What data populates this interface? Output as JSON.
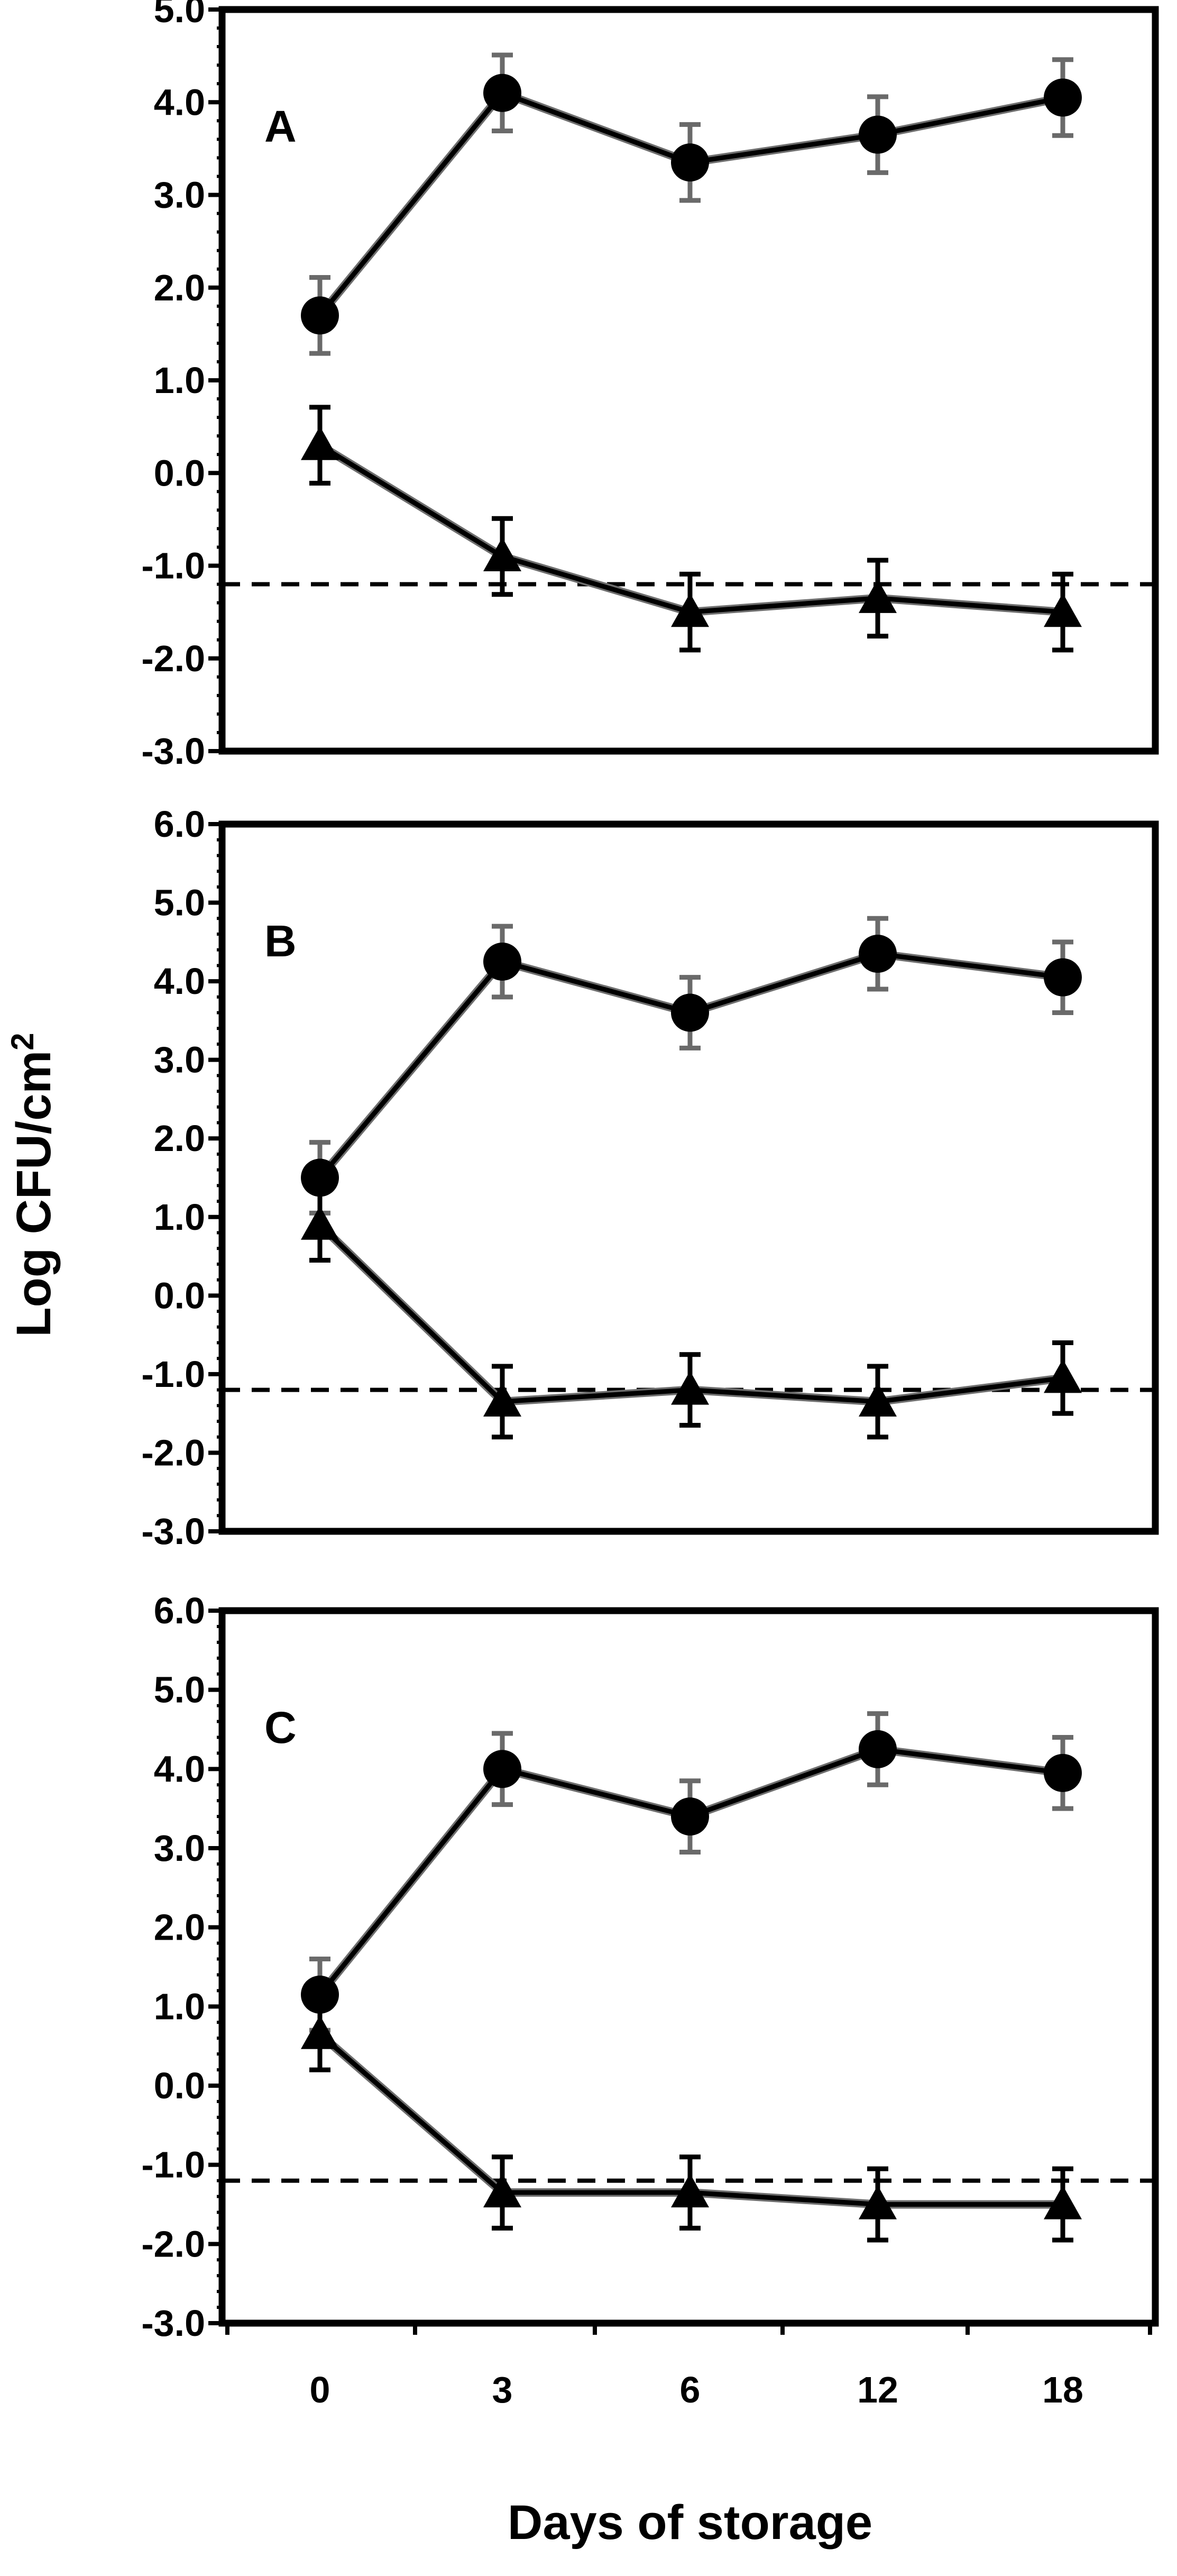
{
  "chart_data": {
    "type": "line",
    "xlabel": "Days of storage",
    "ylabel_text": "Log CFU/cm",
    "ylabel_superscript": "2",
    "categories": [
      "0",
      "3",
      "6",
      "12",
      "18"
    ],
    "detection_limit": -1.2,
    "panels": [
      {
        "label": "A",
        "ylim": [
          -3.0,
          5.0
        ],
        "yticks": [
          "-3.0",
          "-2.0",
          "-1.0",
          "0.0",
          "1.0",
          "2.0",
          "3.0",
          "4.0",
          "5.0"
        ],
        "series": [
          {
            "name": "circle",
            "marker": "circle",
            "values": [
              1.7,
              4.1,
              3.35,
              3.65,
              4.05
            ],
            "errors": [
              0.45,
              0.45,
              0.45,
              0.45,
              0.45
            ]
          },
          {
            "name": "triangle",
            "marker": "triangle",
            "values": [
              0.3,
              -0.9,
              -1.5,
              -1.35,
              -1.5
            ],
            "errors": [
              0.45,
              0.45,
              0.45,
              0.45,
              0.45
            ]
          }
        ]
      },
      {
        "label": "B",
        "ylim": [
          -3.0,
          6.0
        ],
        "yticks": [
          "-3.0",
          "-2.0",
          "-1.0",
          "0.0",
          "1.0",
          "2.0",
          "3.0",
          "4.0",
          "5.0",
          "6.0"
        ],
        "series": [
          {
            "name": "circle",
            "marker": "circle",
            "values": [
              1.5,
              4.25,
              3.6,
              4.35,
              4.05
            ],
            "errors": [
              0.45,
              0.45,
              0.45,
              0.45,
              0.45
            ]
          },
          {
            "name": "triangle",
            "marker": "triangle",
            "values": [
              0.9,
              -1.35,
              -1.2,
              -1.35,
              -1.05
            ],
            "errors": [
              0.45,
              0.45,
              0.45,
              0.45,
              0.45
            ]
          }
        ]
      },
      {
        "label": "C",
        "ylim": [
          -3.0,
          6.0
        ],
        "yticks": [
          "-3.0",
          "-2.0",
          "-1.0",
          "0.0",
          "1.0",
          "2.0",
          "3.0",
          "4.0",
          "5.0",
          "6.0"
        ],
        "series": [
          {
            "name": "circle",
            "marker": "circle",
            "values": [
              1.15,
              4.0,
              3.4,
              4.25,
              3.95
            ],
            "errors": [
              0.45,
              0.45,
              0.45,
              0.45,
              0.45
            ]
          },
          {
            "name": "triangle",
            "marker": "triangle",
            "values": [
              0.65,
              -1.35,
              -1.35,
              -1.5,
              -1.5
            ],
            "errors": [
              0.45,
              0.45,
              0.45,
              0.45,
              0.45
            ]
          }
        ]
      }
    ]
  }
}
